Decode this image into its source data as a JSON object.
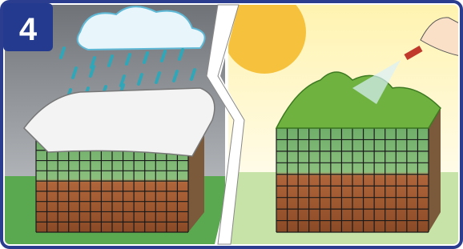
{
  "badge": {
    "label": "4"
  }
}
